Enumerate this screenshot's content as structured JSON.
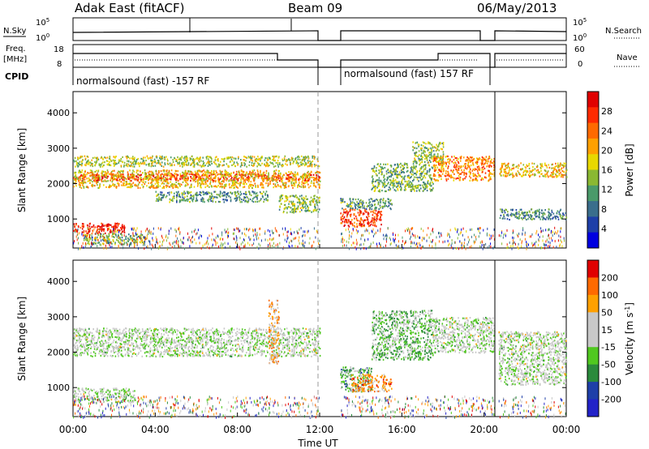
{
  "header": {
    "station": "Adak East (fitACF)",
    "beam": "Beam 09",
    "date": "06/May/2013"
  },
  "left_labels": {
    "nsky": "N.Sky",
    "freq": "Freq.",
    "freq_unit": "[MHz]",
    "cpid": "CPID"
  },
  "right_labels": {
    "nsearch": "N.Search",
    "nave": "Nave"
  },
  "panel_ticks": {
    "noise_left": [
      "10^5",
      "10^0"
    ],
    "noise_right": [
      "10^5",
      "10^0"
    ],
    "freq_left": [
      "18",
      "8"
    ],
    "freq_right": [
      "60",
      "0"
    ]
  },
  "cpid_segments": [
    {
      "text": "normalsound (fast) -157 RF"
    },
    {
      "text": "normalsound (fast) 157 RF"
    }
  ],
  "time_ticks": [
    "00:00",
    "04:00",
    "08:00",
    "12:00",
    "16:00",
    "20:00",
    "00:00"
  ],
  "xlabel": "Time UT",
  "colors": {
    "power_scale": [
      "#0000e0",
      "#1e3fa8",
      "#3a6e8c",
      "#4a9a6a",
      "#8ab832",
      "#e8d800",
      "#ffa000",
      "#ff6a00",
      "#ff2a00",
      "#e00000"
    ],
    "velocity_scale": [
      "#e00000",
      "#ff6a00",
      "#ffa000",
      "#c8c8c8",
      "#c8c8c8",
      "#50c820",
      "#2a8a3c",
      "#1e3fa8",
      "#2222c8"
    ]
  },
  "chart_data": [
    {
      "type": "heatmap",
      "title": "",
      "ylabel": "Slant Range [km]",
      "ylim": [
        180,
        4600
      ],
      "yticks": [
        1000,
        2000,
        3000,
        4000
      ],
      "colorbar_label": "Power [dB]",
      "colorbar_ticks": [
        4,
        8,
        12,
        16,
        20,
        24,
        28
      ],
      "bands": [
        {
          "t0": 0.0,
          "t1": 12.0,
          "r0": 2100,
          "r1": 2300,
          "level": 0.9
        },
        {
          "t0": 0.0,
          "t1": 12.0,
          "r0": 1900,
          "r1": 2400,
          "level": 0.6
        },
        {
          "t0": 0.0,
          "t1": 12.0,
          "r0": 2500,
          "r1": 2800,
          "level": 0.5
        },
        {
          "t0": 0.0,
          "t1": 2.5,
          "r0": 600,
          "r1": 900,
          "level": 0.9
        },
        {
          "t0": 0.5,
          "t1": 3.5,
          "r0": 300,
          "r1": 600,
          "level": 0.4
        },
        {
          "t0": 4.0,
          "t1": 9.5,
          "r0": 1500,
          "r1": 1800,
          "level": 0.35
        },
        {
          "t0": 10.0,
          "t1": 12.0,
          "r0": 1200,
          "r1": 1700,
          "level": 0.45
        },
        {
          "t0": 13.0,
          "t1": 15.0,
          "r0": 800,
          "r1": 1300,
          "level": 0.85
        },
        {
          "t0": 13.0,
          "t1": 15.5,
          "r0": 1300,
          "r1": 1600,
          "level": 0.35
        },
        {
          "t0": 14.5,
          "t1": 17.5,
          "r0": 1800,
          "r1": 2600,
          "level": 0.4
        },
        {
          "t0": 16.5,
          "t1": 18.0,
          "r0": 2600,
          "r1": 3200,
          "level": 0.45
        },
        {
          "t0": 17.5,
          "t1": 20.5,
          "r0": 2100,
          "r1": 2800,
          "level": 0.7
        },
        {
          "t0": 20.7,
          "t1": 24.0,
          "r0": 2200,
          "r1": 2600,
          "level": 0.6
        },
        {
          "t0": 20.7,
          "t1": 24.0,
          "r0": 1000,
          "r1": 1300,
          "level": 0.3
        }
      ]
    },
    {
      "type": "heatmap",
      "title": "",
      "ylabel": "Slant Range [km]",
      "ylim": [
        180,
        4600
      ],
      "yticks": [
        1000,
        2000,
        3000,
        4000
      ],
      "colorbar_label": "Velocity [m s^-1]",
      "colorbar_ticks": [
        200,
        100,
        50,
        15,
        -15,
        -50,
        -100,
        -200
      ],
      "bands": [
        {
          "t0": 0.0,
          "t1": 12.0,
          "r0": 1900,
          "r1": 2700,
          "level": 0.5
        },
        {
          "t0": 0.0,
          "t1": 3.0,
          "r0": 600,
          "r1": 1000,
          "level": 0.5
        },
        {
          "t0": 9.5,
          "t1": 10.0,
          "r0": 1700,
          "r1": 3500,
          "level": 0.3
        },
        {
          "t0": 13.0,
          "t1": 14.5,
          "r0": 900,
          "r1": 1600,
          "level": 0.65
        },
        {
          "t0": 13.5,
          "t1": 15.5,
          "r0": 900,
          "r1": 1400,
          "level": 0.25
        },
        {
          "t0": 14.5,
          "t1": 17.5,
          "r0": 1800,
          "r1": 3200,
          "level": 0.6
        },
        {
          "t0": 17.5,
          "t1": 20.5,
          "r0": 2000,
          "r1": 3000,
          "level": 0.5
        },
        {
          "t0": 20.7,
          "t1": 24.0,
          "r0": 1100,
          "r1": 2600,
          "level": 0.5
        }
      ]
    }
  ]
}
